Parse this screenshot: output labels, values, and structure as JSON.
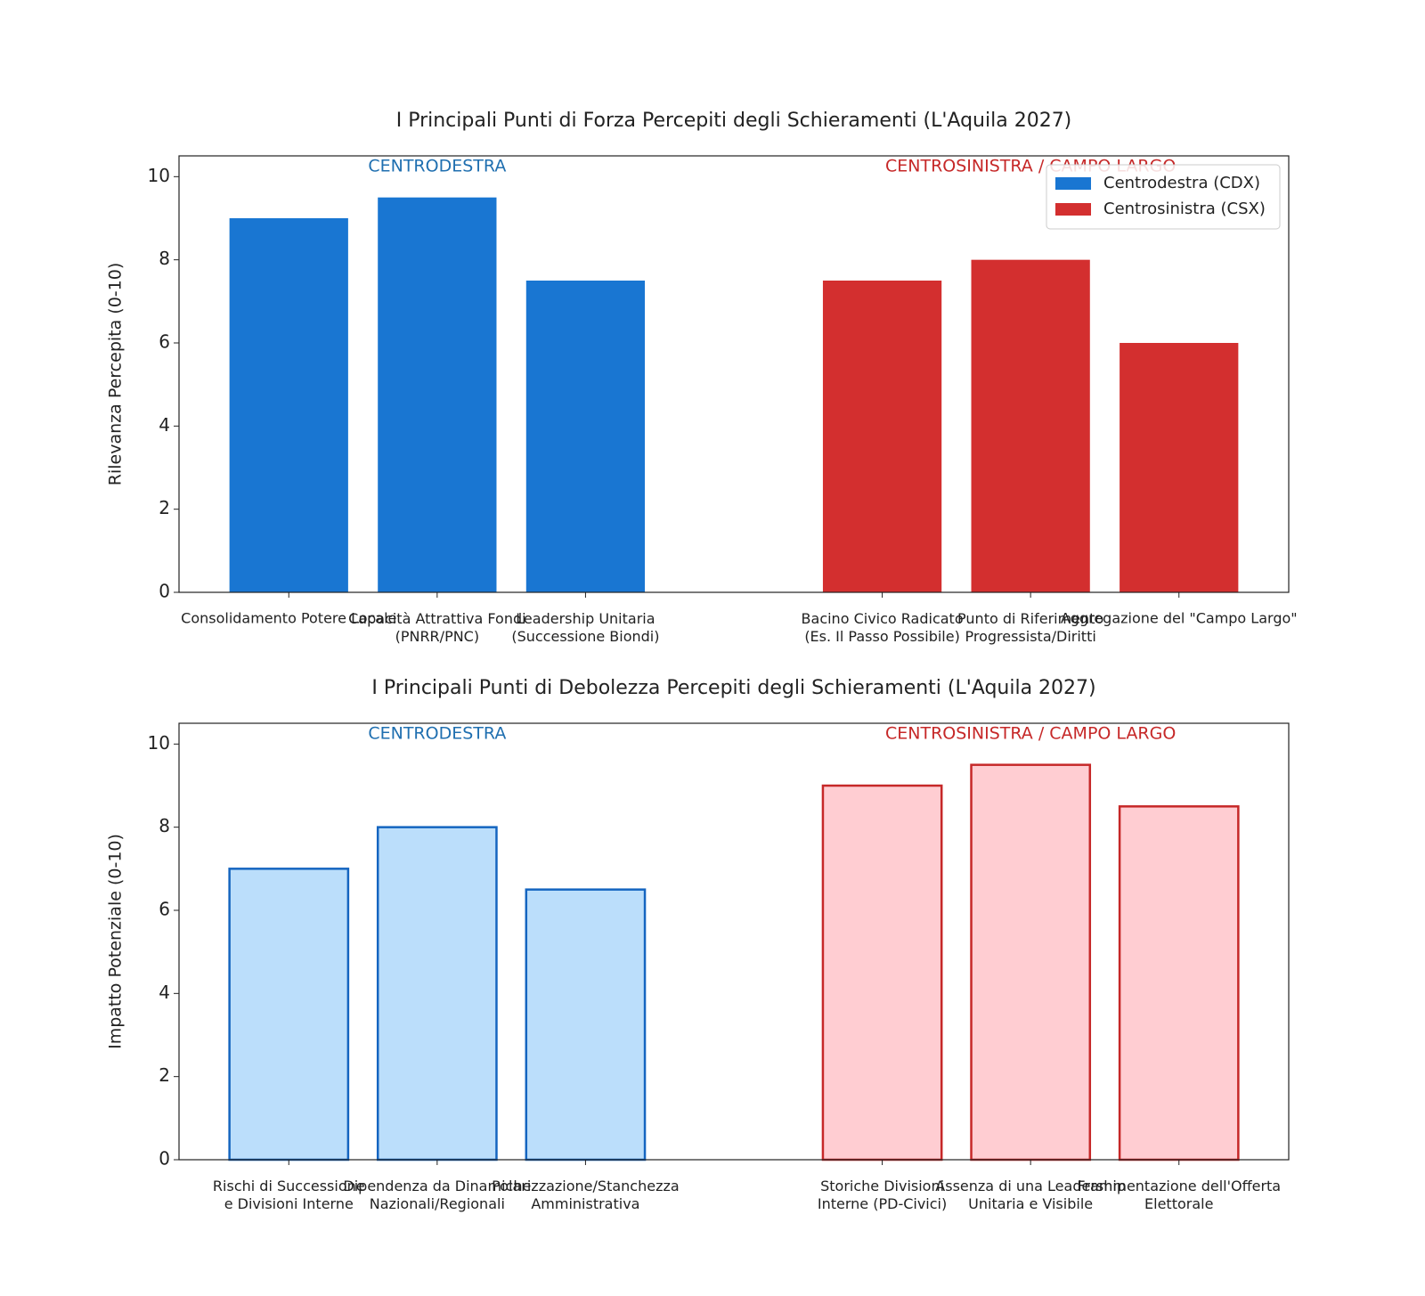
{
  "chart_data": [
    {
      "type": "bar",
      "title": "I Principali Punti di Forza Percepiti degli Schieramenti (L'Aquila 2027)",
      "ylabel": "Rilevanza Percepita (0-10)",
      "categories": [
        "Consolidamento Potere Locale",
        "Capacità Attrattiva Fondi\n(PNRR/PNC)",
        "Leadership Unitaria\n(Successione Biondi)",
        null,
        "Bacino Civico Radicato\n(Es. Il Passo Possibile)",
        "Punto di Riferimento\nProgressista/Diritti",
        "Aggregazione del \"Campo Largo\""
      ],
      "series": [
        {
          "name": "Centrodestra (CDX)",
          "color": "#1976d2",
          "values": [
            9,
            9.5,
            7.5,
            null,
            null,
            null,
            null
          ]
        },
        {
          "name": "Centrosinistra (CSX)",
          "color": "#d32f2f",
          "values": [
            null,
            null,
            null,
            null,
            7.5,
            8,
            6
          ]
        }
      ],
      "annotations": [
        {
          "text": "CENTRODESTRA",
          "color": "#1f6fb0"
        },
        {
          "text": "CENTROSINISTRA / CAMPO LARGO",
          "color": "#c62828"
        }
      ],
      "ylim": [
        0,
        10.5
      ],
      "yticks": [
        0,
        2,
        4,
        6,
        8,
        10
      ],
      "legend": "upper right"
    },
    {
      "type": "bar",
      "title": "I Principali Punti di Debolezza Percepiti degli Schieramenti (L'Aquila 2027)",
      "ylabel": "Impatto Potenziale (0-10)",
      "categories": [
        "Rischi di Successione\ne Divisioni Interne",
        "Dipendenza da Dinamiche\nNazionali/Regionali",
        "Polarizzazione/Stanchezza\nAmministrativa",
        null,
        "Storiche Divisioni\nInterne (PD-Civici)",
        "Assenza di una Leadership\nUnitaria e Visibile",
        "Frammentazione dell'Offerta\nElettorale"
      ],
      "series": [
        {
          "color": "#bbdefb",
          "edgecolor": "#1565c0",
          "values": [
            7,
            8,
            6.5,
            null,
            null,
            null,
            null
          ]
        },
        {
          "color": "#ffcdd2",
          "edgecolor": "#c62828",
          "values": [
            null,
            null,
            null,
            null,
            9,
            9.5,
            8.5
          ]
        }
      ],
      "annotations": [
        {
          "text": "CENTRODESTRA",
          "color": "#1f6fb0"
        },
        {
          "text": "CENTROSINISTRA / CAMPO LARGO",
          "color": "#c62828"
        }
      ],
      "ylim": [
        0,
        10.5
      ],
      "yticks": [
        0,
        2,
        4,
        6,
        8,
        10
      ]
    }
  ]
}
